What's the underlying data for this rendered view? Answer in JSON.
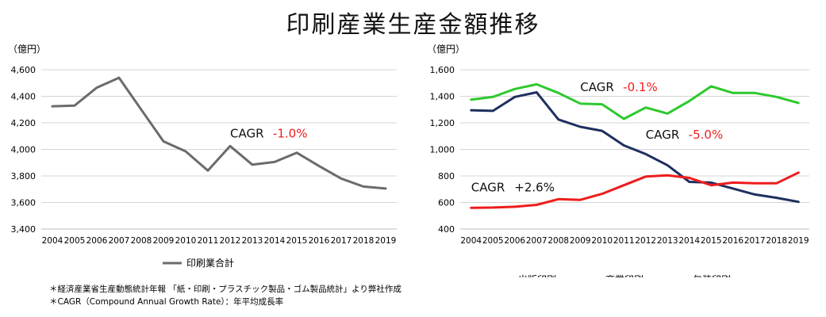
{
  "title": "印刷産業生産金額推移",
  "colors": {
    "total": "#6b6b6b",
    "publishing": "#1f2f5f",
    "commercial": "#2dc92d",
    "packaging": "#ee1c1c",
    "cagr_negative": "#ee1c1c",
    "cagr_text": "#111111",
    "grid": "#d4d4d4"
  },
  "notes": [
    "＊経済産業省生産動態統計年報 「紙・印刷・プラスチック製品・ゴム製品統計」より弊社作成",
    "＊CAGR（Compound Annual Growth Rate）：年平均成長率"
  ],
  "chart_data": [
    {
      "type": "line",
      "unit": "（億円）",
      "x": [
        "2004",
        "2005",
        "2006",
        "2007",
        "2008",
        "2009",
        "2010",
        "2011",
        "2012",
        "2013",
        "2014",
        "2015",
        "2016",
        "2017",
        "2018",
        "2019"
      ],
      "ylim": [
        3400,
        4600
      ],
      "yticks": [
        "3,400",
        "3,600",
        "3,800",
        "4,000",
        "4,200",
        "4,400",
        "4,600"
      ],
      "grid": true,
      "legend": "bottom-center",
      "series": [
        {
          "name": "印刷業合計",
          "color": "#6b6b6b",
          "values": [
            4325,
            4330,
            4465,
            4540,
            4300,
            4060,
            3985,
            3840,
            4025,
            3885,
            3905,
            3975,
            3875,
            3780,
            3720,
            3705
          ]
        }
      ],
      "annotations": [
        {
          "label": "CAGR",
          "value": "-1.0%",
          "x": "2012",
          "y": 4090,
          "value_color": "#ee1c1c"
        }
      ]
    },
    {
      "type": "line",
      "unit": "（億円）",
      "x": [
        "2004",
        "2005",
        "2006",
        "2007",
        "2008",
        "2009",
        "2010",
        "2011",
        "2012",
        "2013",
        "2014",
        "2015",
        "2016",
        "2017",
        "2018",
        "2019"
      ],
      "ylim": [
        400,
        1600
      ],
      "yticks": [
        "400",
        "600",
        "800",
        "1,000",
        "1,200",
        "1,400",
        "1,600"
      ],
      "grid": true,
      "legend": "bottom-center",
      "series": [
        {
          "name": "出版印刷",
          "color": "#1f2f5f",
          "values": [
            1295,
            1290,
            1395,
            1430,
            1225,
            1170,
            1140,
            1030,
            965,
            880,
            755,
            750,
            705,
            660,
            635,
            605
          ]
        },
        {
          "name": "商業印刷",
          "color": "#2dc92d",
          "values": [
            1375,
            1395,
            1455,
            1490,
            1425,
            1345,
            1340,
            1230,
            1315,
            1270,
            1365,
            1475,
            1425,
            1425,
            1395,
            1350
          ]
        },
        {
          "name": "包装印刷",
          "color": "#ee1c1c",
          "values": [
            560,
            562,
            568,
            582,
            625,
            620,
            665,
            730,
            795,
            805,
            785,
            730,
            750,
            745,
            745,
            825
          ]
        }
      ],
      "annotations": [
        {
          "label": "CAGR",
          "value": "-0.1%",
          "x": "2009",
          "y": 1440,
          "value_color": "#ee1c1c"
        },
        {
          "label": "CAGR",
          "value": "-5.0%",
          "x": "2012",
          "y": 1080,
          "value_color": "#ee1c1c"
        },
        {
          "label": "CAGR",
          "value": "+2.6%",
          "x": "2004",
          "y": 685,
          "value_color": "#111111"
        }
      ]
    }
  ]
}
